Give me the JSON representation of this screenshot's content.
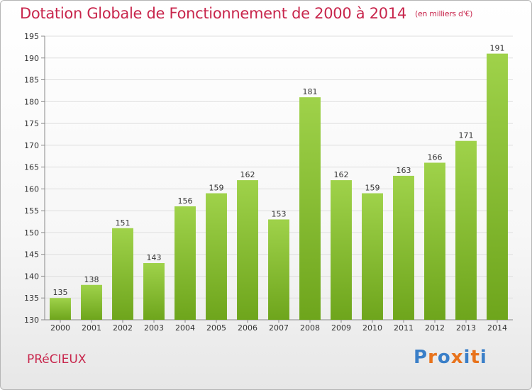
{
  "header": {
    "title": "Dotation Globale de Fonctionnement de 2000 à 2014",
    "subtitle": "(en milliers d'€)"
  },
  "footer": {
    "commune": "PRéCIEUX",
    "logo_text": "Proxiti"
  },
  "colors": {
    "title": "#c8264c",
    "bar_top": "#9fd24a",
    "bar_bottom": "#6ea51c",
    "logo_letters": [
      "#3a7fc8",
      "#e8731c",
      "#3a7fc8",
      "#e8731c",
      "#3a7fc8",
      "#e8731c",
      "#3a7fc8"
    ]
  },
  "chart_data": {
    "type": "bar",
    "title": "Dotation Globale de Fonctionnement de 2000 à 2014",
    "subtitle": "(en milliers d'€)",
    "xlabel": "",
    "ylabel": "",
    "categories": [
      "2000",
      "2001",
      "2002",
      "2003",
      "2004",
      "2005",
      "2006",
      "2007",
      "2008",
      "2009",
      "2010",
      "2011",
      "2012",
      "2013",
      "2014"
    ],
    "values": [
      135,
      138,
      151,
      143,
      156,
      159,
      162,
      153,
      181,
      162,
      159,
      163,
      166,
      171,
      191
    ],
    "ylim": [
      130,
      195
    ],
    "yticks": [
      130,
      135,
      140,
      145,
      150,
      155,
      160,
      165,
      170,
      175,
      180,
      185,
      190,
      195
    ],
    "grid": true,
    "legend": "none"
  }
}
